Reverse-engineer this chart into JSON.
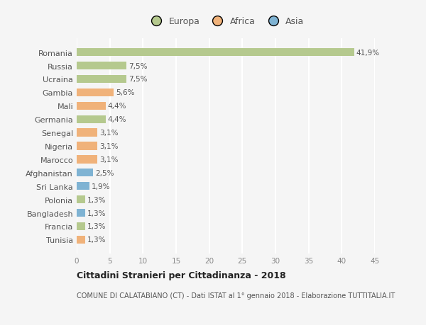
{
  "countries": [
    "Romania",
    "Russia",
    "Ucraina",
    "Gambia",
    "Mali",
    "Germania",
    "Senegal",
    "Nigeria",
    "Marocco",
    "Afghanistan",
    "Sri Lanka",
    "Polonia",
    "Bangladesh",
    "Francia",
    "Tunisia"
  ],
  "values": [
    41.9,
    7.5,
    7.5,
    5.6,
    4.4,
    4.4,
    3.1,
    3.1,
    3.1,
    2.5,
    1.9,
    1.3,
    1.3,
    1.3,
    1.3
  ],
  "labels": [
    "41,9%",
    "7,5%",
    "7,5%",
    "5,6%",
    "4,4%",
    "4,4%",
    "3,1%",
    "3,1%",
    "3,1%",
    "2,5%",
    "1,9%",
    "1,3%",
    "1,3%",
    "1,3%",
    "1,3%"
  ],
  "categories": [
    "Europa",
    "Europa",
    "Europa",
    "Africa",
    "Africa",
    "Europa",
    "Africa",
    "Africa",
    "Africa",
    "Asia",
    "Asia",
    "Europa",
    "Asia",
    "Europa",
    "Africa"
  ],
  "colors": {
    "Europa": "#b5c98e",
    "Africa": "#f0b27a",
    "Asia": "#7fb3d3"
  },
  "legend_labels": [
    "Europa",
    "Africa",
    "Asia"
  ],
  "title": "Cittadini Stranieri per Cittadinanza - 2018",
  "subtitle": "COMUNE DI CALATABIANO (CT) - Dati ISTAT al 1° gennaio 2018 - Elaborazione TUTTITALIA.IT",
  "xlim": [
    0,
    45
  ],
  "xticks": [
    0,
    5,
    10,
    15,
    20,
    25,
    30,
    35,
    40,
    45
  ],
  "bg_color": "#f5f5f5",
  "grid_color": "#ffffff",
  "bar_height": 0.6
}
